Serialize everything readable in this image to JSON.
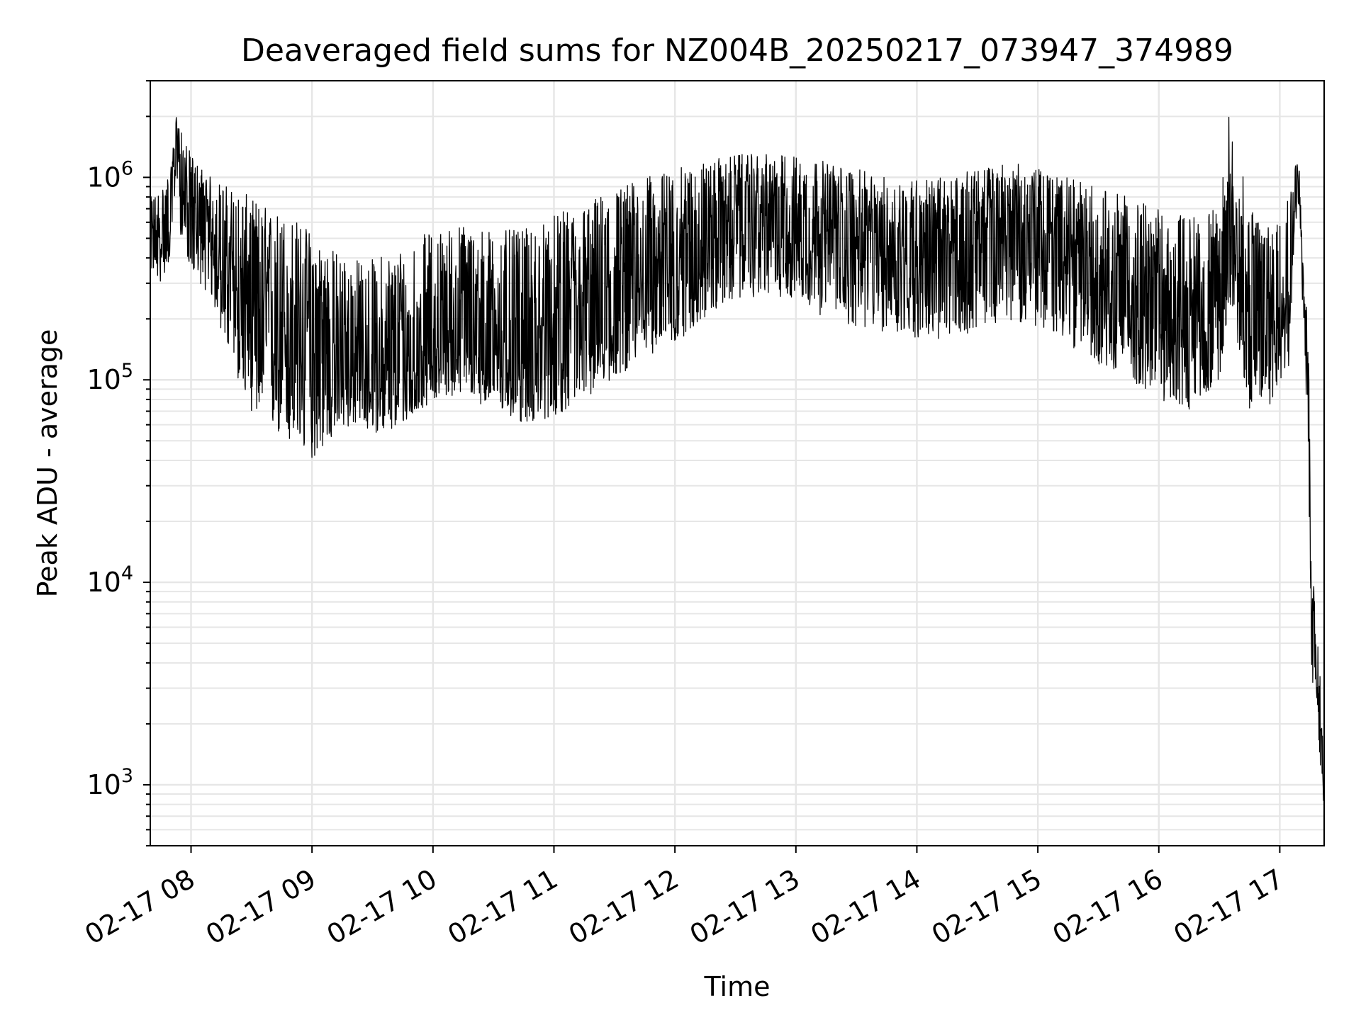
{
  "chart_data": {
    "type": "line",
    "title": "Deaveraged field sums for NZ004B_20250217_073947_374989",
    "xlabel": "Time",
    "ylabel": "Peak ADU - average",
    "yscale": "log",
    "ylim": [
      500,
      3000000
    ],
    "xlim": [
      "2025-02-17T07:39:47",
      "2025-02-17T17:22:00"
    ],
    "x_ticks": [
      {
        "t": "2025-02-17T08:00:00",
        "label": "02-17 08"
      },
      {
        "t": "2025-02-17T09:00:00",
        "label": "02-17 09"
      },
      {
        "t": "2025-02-17T10:00:00",
        "label": "02-17 10"
      },
      {
        "t": "2025-02-17T11:00:00",
        "label": "02-17 11"
      },
      {
        "t": "2025-02-17T12:00:00",
        "label": "02-17 12"
      },
      {
        "t": "2025-02-17T13:00:00",
        "label": "02-17 13"
      },
      {
        "t": "2025-02-17T14:00:00",
        "label": "02-17 14"
      },
      {
        "t": "2025-02-17T15:00:00",
        "label": "02-17 15"
      },
      {
        "t": "2025-02-17T16:00:00",
        "label": "02-17 16"
      },
      {
        "t": "2025-02-17T17:00:00",
        "label": "02-17 17"
      }
    ],
    "y_ticks": [
      {
        "v": 1000,
        "base": "10",
        "exp": "3"
      },
      {
        "v": 10000,
        "base": "10",
        "exp": "4"
      },
      {
        "v": 100000,
        "base": "10",
        "exp": "5"
      },
      {
        "v": 1000000,
        "base": "10",
        "exp": "6"
      }
    ],
    "grid": true,
    "line_color": "#000000",
    "grid_color": "#e6e6e6",
    "series": [
      {
        "x": [
          "2025-02-17T07:40:00",
          "2025-02-17T07:45:00",
          "2025-02-17T07:50:00",
          "2025-02-17T07:53:00",
          "2025-02-17T07:55:00",
          "2025-02-17T08:00:00",
          "2025-02-17T08:10:00",
          "2025-02-17T08:20:00",
          "2025-02-17T08:30:00",
          "2025-02-17T08:40:00",
          "2025-02-17T08:50:00",
          "2025-02-17T09:00:00",
          "2025-02-17T09:10:00",
          "2025-02-17T09:20:00",
          "2025-02-17T09:30:00",
          "2025-02-17T09:40:00",
          "2025-02-17T09:50:00",
          "2025-02-17T10:00:00",
          "2025-02-17T10:15:00",
          "2025-02-17T10:30:00",
          "2025-02-17T10:45:00",
          "2025-02-17T11:00:00",
          "2025-02-17T11:15:00",
          "2025-02-17T11:30:00",
          "2025-02-17T11:45:00",
          "2025-02-17T12:00:00",
          "2025-02-17T12:15:00",
          "2025-02-17T12:30:00",
          "2025-02-17T12:45:00",
          "2025-02-17T13:00:00",
          "2025-02-17T13:15:00",
          "2025-02-17T13:30:00",
          "2025-02-17T13:45:00",
          "2025-02-17T14:00:00",
          "2025-02-17T14:15:00",
          "2025-02-17T14:30:00",
          "2025-02-17T14:45:00",
          "2025-02-17T15:00:00",
          "2025-02-17T15:15:00",
          "2025-02-17T15:30:00",
          "2025-02-17T15:45:00",
          "2025-02-17T16:00:00",
          "2025-02-17T16:15:00",
          "2025-02-17T16:30:00",
          "2025-02-17T16:35:00",
          "2025-02-17T16:45:00",
          "2025-02-17T16:55:00",
          "2025-02-17T17:05:00",
          "2025-02-17T17:08:00",
          "2025-02-17T17:10:00",
          "2025-02-17T17:12:00",
          "2025-02-17T17:14:00",
          "2025-02-17T17:16:00",
          "2025-02-17T17:18:00",
          "2025-02-17T17:20:00",
          "2025-02-17T17:22:00"
        ],
        "median": [
          500000,
          450000,
          700000,
          1800000,
          900000,
          650000,
          500000,
          300000,
          200000,
          180000,
          160000,
          150000,
          130000,
          110000,
          100000,
          100000,
          110000,
          140000,
          180000,
          150000,
          130000,
          160000,
          190000,
          260000,
          330000,
          400000,
          500000,
          600000,
          620000,
          580000,
          520000,
          480000,
          430000,
          430000,
          420000,
          500000,
          560000,
          520000,
          420000,
          340000,
          270000,
          220000,
          190000,
          220000,
          700000,
          180000,
          200000,
          300000,
          950000,
          800000,
          200000,
          100000,
          6000,
          4500,
          2000,
          1000
        ],
        "low": [
          350000,
          300000,
          400000,
          1000000,
          500000,
          350000,
          250000,
          120000,
          70000,
          55000,
          45000,
          40000,
          50000,
          60000,
          55000,
          55000,
          65000,
          80000,
          85000,
          70000,
          60000,
          65000,
          80000,
          100000,
          130000,
          150000,
          200000,
          250000,
          260000,
          250000,
          200000,
          180000,
          170000,
          160000,
          150000,
          180000,
          200000,
          180000,
          150000,
          120000,
          100000,
          80000,
          70000,
          100000,
          250000,
          70000,
          75000,
          120000,
          600000,
          500000,
          150000,
          50000,
          3000,
          2500,
          1000,
          700
        ],
        "high": [
          800000,
          900000,
          1100000,
          2200000,
          1700000,
          1300000,
          1000000,
          900000,
          800000,
          700000,
          650000,
          550000,
          450000,
          400000,
          400000,
          450000,
          500000,
          550000,
          600000,
          550000,
          550000,
          650000,
          750000,
          900000,
          1000000,
          1100000,
          1200000,
          1300000,
          1300000,
          1300000,
          1200000,
          1100000,
          1000000,
          1000000,
          1000000,
          1100000,
          1200000,
          1100000,
          1000000,
          900000,
          800000,
          700000,
          650000,
          700000,
          2200000,
          700000,
          650000,
          900000,
          1300000,
          1100000,
          300000,
          200000,
          11000,
          8000,
          3500,
          1500
        ]
      }
    ]
  }
}
